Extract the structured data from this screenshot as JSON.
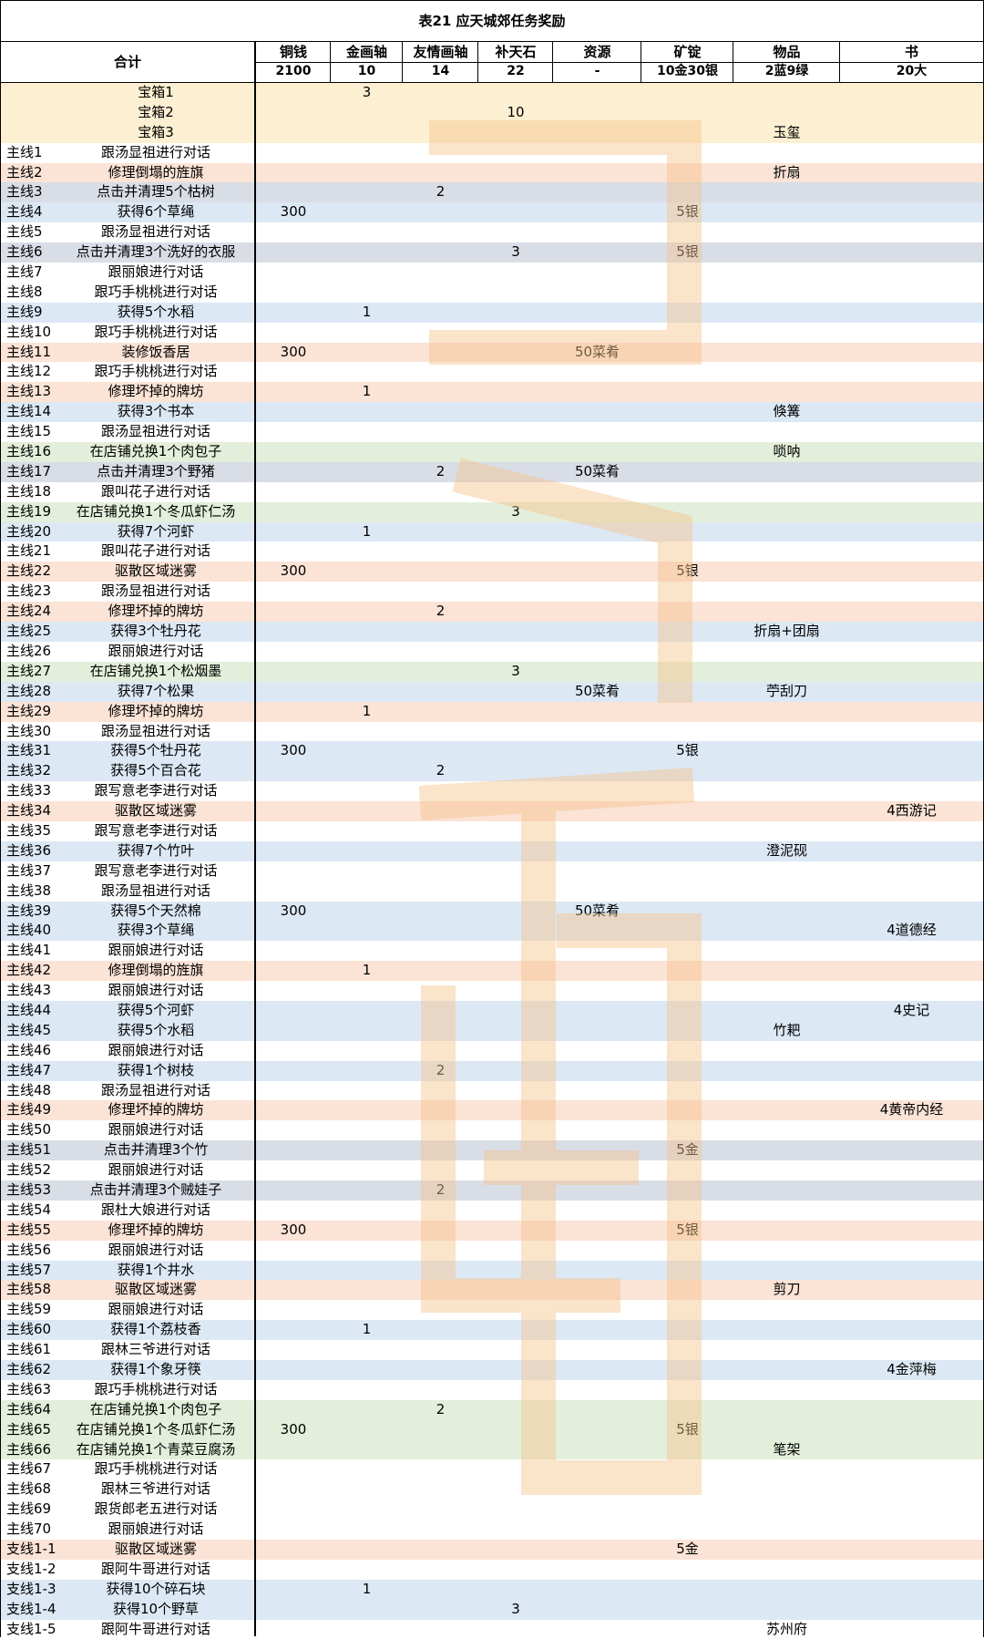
{
  "title": "表21 应天城郊任务奖励",
  "header": {
    "total_label": "合计",
    "columns": [
      {
        "name": "铜钱",
        "total": "2100"
      },
      {
        "name": "金画轴",
        "total": "10"
      },
      {
        "name": "友情画轴",
        "total": "14"
      },
      {
        "name": "补天石",
        "total": "22"
      },
      {
        "name": "资源",
        "total": "-"
      },
      {
        "name": "矿锭",
        "total": "10金30银"
      },
      {
        "name": "物品",
        "total": "2蓝9绿"
      },
      {
        "name": "书",
        "total": "20大"
      }
    ]
  },
  "colors": {
    "yellow": "#fdf0d2",
    "orange": "#fbe3d6",
    "blue": "#dce8f4",
    "gray": "#d8dde6",
    "green": "#e3efda",
    "white": "#ffffff",
    "watermark": "#f6c48c"
  },
  "rows": [
    {
      "a": "",
      "b": "宝箱1",
      "v": [
        "",
        "3",
        "",
        "",
        "",
        "",
        "",
        ""
      ],
      "bg": "yellow"
    },
    {
      "a": "",
      "b": "宝箱2",
      "v": [
        "",
        "",
        "",
        "10",
        "",
        "",
        "",
        ""
      ],
      "bg": "yellow"
    },
    {
      "a": "",
      "b": "宝箱3",
      "v": [
        "",
        "",
        "",
        "",
        "",
        "",
        "玉玺",
        ""
      ],
      "bg": "yellow"
    },
    {
      "a": "主线1",
      "b": "跟汤显祖进行对话",
      "v": [
        "",
        "",
        "",
        "",
        "",
        "",
        "",
        ""
      ],
      "bg": "white"
    },
    {
      "a": "主线2",
      "b": "修理倒塌的旌旗",
      "v": [
        "",
        "",
        "",
        "",
        "",
        "",
        "折扇",
        ""
      ],
      "bg": "orange"
    },
    {
      "a": "主线3",
      "b": "点击并清理5个枯树",
      "v": [
        "",
        "",
        "2",
        "",
        "",
        "",
        "",
        ""
      ],
      "bg": "gray"
    },
    {
      "a": "主线4",
      "b": "获得6个草绳",
      "v": [
        "300",
        "",
        "",
        "",
        "",
        "5银",
        "",
        ""
      ],
      "bg": "blue"
    },
    {
      "a": "主线5",
      "b": "跟汤显祖进行对话",
      "v": [
        "",
        "",
        "",
        "",
        "",
        "",
        "",
        ""
      ],
      "bg": "white"
    },
    {
      "a": "主线6",
      "b": "点击并清理3个洗好的衣服",
      "v": [
        "",
        "",
        "",
        "3",
        "",
        "5银",
        "",
        ""
      ],
      "bg": "gray"
    },
    {
      "a": "主线7",
      "b": "跟丽娘进行对话",
      "v": [
        "",
        "",
        "",
        "",
        "",
        "",
        "",
        ""
      ],
      "bg": "white"
    },
    {
      "a": "主线8",
      "b": "跟巧手桃桃进行对话",
      "v": [
        "",
        "",
        "",
        "",
        "",
        "",
        "",
        ""
      ],
      "bg": "white"
    },
    {
      "a": "主线9",
      "b": "获得5个水稻",
      "v": [
        "",
        "1",
        "",
        "",
        "",
        "",
        "",
        ""
      ],
      "bg": "blue"
    },
    {
      "a": "主线10",
      "b": "跟巧手桃桃进行对话",
      "v": [
        "",
        "",
        "",
        "",
        "",
        "",
        "",
        ""
      ],
      "bg": "white"
    },
    {
      "a": "主线11",
      "b": "装修饭香居",
      "v": [
        "300",
        "",
        "",
        "",
        "50菜肴",
        "",
        "",
        ""
      ],
      "bg": "orange"
    },
    {
      "a": "主线12",
      "b": "跟巧手桃桃进行对话",
      "v": [
        "",
        "",
        "",
        "",
        "",
        "",
        "",
        ""
      ],
      "bg": "white"
    },
    {
      "a": "主线13",
      "b": "修理坏掉的牌坊",
      "v": [
        "",
        "1",
        "",
        "",
        "",
        "",
        "",
        ""
      ],
      "bg": "orange"
    },
    {
      "a": "主线14",
      "b": "获得3个书本",
      "v": [
        "",
        "",
        "",
        "",
        "",
        "",
        "倏篝",
        ""
      ],
      "bg": "blue"
    },
    {
      "a": "主线15",
      "b": "跟汤显祖进行对话",
      "v": [
        "",
        "",
        "",
        "",
        "",
        "",
        "",
        ""
      ],
      "bg": "white"
    },
    {
      "a": "主线16",
      "b": "在店铺兑换1个肉包子",
      "v": [
        "",
        "",
        "",
        "",
        "",
        "",
        "唢呐",
        ""
      ],
      "bg": "green"
    },
    {
      "a": "主线17",
      "b": "点击并清理3个野猪",
      "v": [
        "",
        "",
        "2",
        "",
        "50菜肴",
        "",
        "",
        ""
      ],
      "bg": "gray"
    },
    {
      "a": "主线18",
      "b": "跟叫花子进行对话",
      "v": [
        "",
        "",
        "",
        "",
        "",
        "",
        "",
        ""
      ],
      "bg": "white"
    },
    {
      "a": "主线19",
      "b": "在店铺兑换1个冬瓜虾仁汤",
      "v": [
        "",
        "",
        "",
        "3",
        "",
        "",
        "",
        ""
      ],
      "bg": "green"
    },
    {
      "a": "主线20",
      "b": "获得7个河虾",
      "v": [
        "",
        "1",
        "",
        "",
        "",
        "",
        "",
        ""
      ],
      "bg": "blue"
    },
    {
      "a": "主线21",
      "b": "跟叫花子进行对话",
      "v": [
        "",
        "",
        "",
        "",
        "",
        "",
        "",
        ""
      ],
      "bg": "white"
    },
    {
      "a": "主线22",
      "b": "驱散区域迷雾",
      "v": [
        "300",
        "",
        "",
        "",
        "",
        "5银",
        "",
        ""
      ],
      "bg": "orange"
    },
    {
      "a": "主线23",
      "b": "跟汤显祖进行对话",
      "v": [
        "",
        "",
        "",
        "",
        "",
        "",
        "",
        ""
      ],
      "bg": "white"
    },
    {
      "a": "主线24",
      "b": "修理坏掉的牌坊",
      "v": [
        "",
        "",
        "2",
        "",
        "",
        "",
        "",
        ""
      ],
      "bg": "orange"
    },
    {
      "a": "主线25",
      "b": "获得3个牡丹花",
      "v": [
        "",
        "",
        "",
        "",
        "",
        "",
        "折扇+团扇",
        ""
      ],
      "bg": "blue"
    },
    {
      "a": "主线26",
      "b": "跟丽娘进行对话",
      "v": [
        "",
        "",
        "",
        "",
        "",
        "",
        "",
        ""
      ],
      "bg": "white"
    },
    {
      "a": "主线27",
      "b": "在店铺兑换1个松烟墨",
      "v": [
        "",
        "",
        "",
        "3",
        "",
        "",
        "",
        ""
      ],
      "bg": "green"
    },
    {
      "a": "主线28",
      "b": "获得7个松果",
      "v": [
        "",
        "",
        "",
        "",
        "50菜肴",
        "",
        "苧刮刀",
        ""
      ],
      "bg": "blue"
    },
    {
      "a": "主线29",
      "b": "修理坏掉的牌坊",
      "v": [
        "",
        "1",
        "",
        "",
        "",
        "",
        "",
        ""
      ],
      "bg": "orange"
    },
    {
      "a": "主线30",
      "b": "跟汤显祖进行对话",
      "v": [
        "",
        "",
        "",
        "",
        "",
        "",
        "",
        ""
      ],
      "bg": "white"
    },
    {
      "a": "主线31",
      "b": "获得5个牡丹花",
      "v": [
        "300",
        "",
        "",
        "",
        "",
        "5银",
        "",
        ""
      ],
      "bg": "blue"
    },
    {
      "a": "主线32",
      "b": "获得5个百合花",
      "v": [
        "",
        "",
        "2",
        "",
        "",
        "",
        "",
        ""
      ],
      "bg": "blue"
    },
    {
      "a": "主线33",
      "b": "跟写意老李进行对话",
      "v": [
        "",
        "",
        "",
        "",
        "",
        "",
        "",
        ""
      ],
      "bg": "white"
    },
    {
      "a": "主线34",
      "b": "驱散区域迷雾",
      "v": [
        "",
        "",
        "",
        "",
        "",
        "",
        "",
        "4西游记"
      ],
      "bg": "orange"
    },
    {
      "a": "主线35",
      "b": "跟写意老李进行对话",
      "v": [
        "",
        "",
        "",
        "",
        "",
        "",
        "",
        ""
      ],
      "bg": "white"
    },
    {
      "a": "主线36",
      "b": "获得7个竹叶",
      "v": [
        "",
        "",
        "",
        "",
        "",
        "",
        "澄泥砚",
        ""
      ],
      "bg": "blue"
    },
    {
      "a": "主线37",
      "b": "跟写意老李进行对话",
      "v": [
        "",
        "",
        "",
        "",
        "",
        "",
        "",
        ""
      ],
      "bg": "white"
    },
    {
      "a": "主线38",
      "b": "跟汤显祖进行对话",
      "v": [
        "",
        "",
        "",
        "",
        "",
        "",
        "",
        ""
      ],
      "bg": "white"
    },
    {
      "a": "主线39",
      "b": "获得5个天然棉",
      "v": [
        "300",
        "",
        "",
        "",
        "50菜肴",
        "",
        "",
        ""
      ],
      "bg": "blue"
    },
    {
      "a": "主线40",
      "b": "获得3个草绳",
      "v": [
        "",
        "",
        "",
        "",
        "",
        "",
        "",
        "4道德经"
      ],
      "bg": "blue"
    },
    {
      "a": "主线41",
      "b": "跟丽娘进行对话",
      "v": [
        "",
        "",
        "",
        "",
        "",
        "",
        "",
        ""
      ],
      "bg": "white"
    },
    {
      "a": "主线42",
      "b": "修理倒塌的旌旗",
      "v": [
        "",
        "1",
        "",
        "",
        "",
        "",
        "",
        ""
      ],
      "bg": "orange"
    },
    {
      "a": "主线43",
      "b": "跟丽娘进行对话",
      "v": [
        "",
        "",
        "",
        "",
        "",
        "",
        "",
        ""
      ],
      "bg": "white"
    },
    {
      "a": "主线44",
      "b": "获得5个河虾",
      "v": [
        "",
        "",
        "",
        "",
        "",
        "",
        "",
        "4史记"
      ],
      "bg": "blue"
    },
    {
      "a": "主线45",
      "b": "获得5个水稻",
      "v": [
        "",
        "",
        "",
        "",
        "",
        "",
        "竹耙",
        ""
      ],
      "bg": "blue"
    },
    {
      "a": "主线46",
      "b": "跟丽娘进行对话",
      "v": [
        "",
        "",
        "",
        "",
        "",
        "",
        "",
        ""
      ],
      "bg": "white"
    },
    {
      "a": "主线47",
      "b": "获得1个树枝",
      "v": [
        "",
        "",
        "2",
        "",
        "",
        "",
        "",
        ""
      ],
      "bg": "blue"
    },
    {
      "a": "主线48",
      "b": "跟汤显祖进行对话",
      "v": [
        "",
        "",
        "",
        "",
        "",
        "",
        "",
        ""
      ],
      "bg": "white"
    },
    {
      "a": "主线49",
      "b": "修理坏掉的牌坊",
      "v": [
        "",
        "",
        "",
        "",
        "",
        "",
        "",
        "4黄帝内经"
      ],
      "bg": "orange"
    },
    {
      "a": "主线50",
      "b": "跟丽娘进行对话",
      "v": [
        "",
        "",
        "",
        "",
        "",
        "",
        "",
        ""
      ],
      "bg": "white"
    },
    {
      "a": "主线51",
      "b": "点击并清理3个竹",
      "v": [
        "",
        "",
        "",
        "",
        "",
        "5金",
        "",
        ""
      ],
      "bg": "gray"
    },
    {
      "a": "主线52",
      "b": "跟丽娘进行对话",
      "v": [
        "",
        "",
        "",
        "",
        "",
        "",
        "",
        ""
      ],
      "bg": "white"
    },
    {
      "a": "主线53",
      "b": "点击并清理3个贼娃子",
      "v": [
        "",
        "",
        "2",
        "",
        "",
        "",
        "",
        ""
      ],
      "bg": "gray"
    },
    {
      "a": "主线54",
      "b": "跟杜大娘进行对话",
      "v": [
        "",
        "",
        "",
        "",
        "",
        "",
        "",
        ""
      ],
      "bg": "white"
    },
    {
      "a": "主线55",
      "b": "修理坏掉的牌坊",
      "v": [
        "300",
        "",
        "",
        "",
        "",
        "5银",
        "",
        ""
      ],
      "bg": "orange"
    },
    {
      "a": "主线56",
      "b": "跟丽娘进行对话",
      "v": [
        "",
        "",
        "",
        "",
        "",
        "",
        "",
        ""
      ],
      "bg": "white"
    },
    {
      "a": "主线57",
      "b": "获得1个井水",
      "v": [
        "",
        "",
        "",
        "",
        "",
        "",
        "",
        ""
      ],
      "bg": "blue"
    },
    {
      "a": "主线58",
      "b": "驱散区域迷雾",
      "v": [
        "",
        "",
        "",
        "",
        "",
        "",
        "剪刀",
        ""
      ],
      "bg": "orange"
    },
    {
      "a": "主线59",
      "b": "跟丽娘进行对话",
      "v": [
        "",
        "",
        "",
        "",
        "",
        "",
        "",
        ""
      ],
      "bg": "white"
    },
    {
      "a": "主线60",
      "b": "获得1个荔枝香",
      "v": [
        "",
        "1",
        "",
        "",
        "",
        "",
        "",
        ""
      ],
      "bg": "blue"
    },
    {
      "a": "主线61",
      "b": "跟林三爷进行对话",
      "v": [
        "",
        "",
        "",
        "",
        "",
        "",
        "",
        ""
      ],
      "bg": "white"
    },
    {
      "a": "主线62",
      "b": "获得1个象牙筷",
      "v": [
        "",
        "",
        "",
        "",
        "",
        "",
        "",
        "4金萍梅"
      ],
      "bg": "blue"
    },
    {
      "a": "主线63",
      "b": "跟巧手桃桃进行对话",
      "v": [
        "",
        "",
        "",
        "",
        "",
        "",
        "",
        ""
      ],
      "bg": "white"
    },
    {
      "a": "主线64",
      "b": "在店铺兑换1个肉包子",
      "v": [
        "",
        "",
        "2",
        "",
        "",
        "",
        "",
        ""
      ],
      "bg": "green"
    },
    {
      "a": "主线65",
      "b": "在店铺兑换1个冬瓜虾仁汤",
      "v": [
        "300",
        "",
        "",
        "",
        "",
        "5银",
        "",
        ""
      ],
      "bg": "green"
    },
    {
      "a": "主线66",
      "b": "在店铺兑换1个青菜豆腐汤",
      "v": [
        "",
        "",
        "",
        "",
        "",
        "",
        "笔架",
        ""
      ],
      "bg": "green"
    },
    {
      "a": "主线67",
      "b": "跟巧手桃桃进行对话",
      "v": [
        "",
        "",
        "",
        "",
        "",
        "",
        "",
        ""
      ],
      "bg": "white"
    },
    {
      "a": "主线68",
      "b": "跟林三爷进行对话",
      "v": [
        "",
        "",
        "",
        "",
        "",
        "",
        "",
        ""
      ],
      "bg": "white"
    },
    {
      "a": "主线69",
      "b": "跟货郎老五进行对话",
      "v": [
        "",
        "",
        "",
        "",
        "",
        "",
        "",
        ""
      ],
      "bg": "white"
    },
    {
      "a": "主线70",
      "b": "跟丽娘进行对话",
      "v": [
        "",
        "",
        "",
        "",
        "",
        "",
        "",
        ""
      ],
      "bg": "white"
    },
    {
      "a": "支线1-1",
      "b": "驱散区域迷雾",
      "v": [
        "",
        "",
        "",
        "",
        "",
        "5金",
        "",
        ""
      ],
      "bg": "orange"
    },
    {
      "a": "支线1-2",
      "b": "跟阿牛哥进行对话",
      "v": [
        "",
        "",
        "",
        "",
        "",
        "",
        "",
        ""
      ],
      "bg": "white"
    },
    {
      "a": "支线1-3",
      "b": "获得10个碎石块",
      "v": [
        "",
        "1",
        "",
        "",
        "",
        "",
        "",
        ""
      ],
      "bg": "blue"
    },
    {
      "a": "支线1-4",
      "b": "获得10个野草",
      "v": [
        "",
        "",
        "",
        "3",
        "",
        "",
        "",
        ""
      ],
      "bg": "blue"
    },
    {
      "a": "支线1-5",
      "b": "跟阿牛哥进行对话",
      "v": [
        "",
        "",
        "",
        "",
        "",
        "",
        "苏州府",
        ""
      ],
      "bg": "white"
    }
  ]
}
